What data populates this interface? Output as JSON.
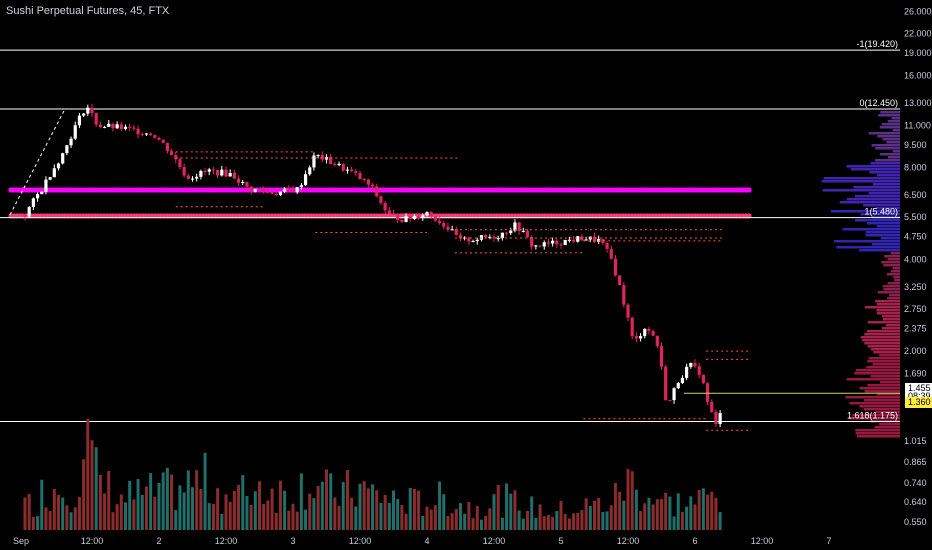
{
  "header": {
    "title": "Sushi Perpetual Futures, 45, FTX"
  },
  "chart_data": {
    "type": "candlestick",
    "title": "Sushi Perpetual Futures, 45, FTX",
    "y_scale": "log",
    "ylim": [
      0.53,
      27.5
    ],
    "y_ticks": [
      "26.000",
      "22.000",
      "19.000",
      "16.000",
      "13.000",
      "11.000",
      "9.500",
      "8.000",
      "6.500",
      "5.500",
      "4.750",
      "4.000",
      "3.250",
      "2.750",
      "2.375",
      "2.000",
      "1.690",
      "1.360",
      "1.015",
      "0.865",
      "0.740",
      "0.640",
      "0.550"
    ],
    "y_tick_values": [
      26.0,
      22.0,
      19.0,
      16.0,
      13.0,
      11.0,
      9.5,
      8.0,
      6.5,
      5.5,
      4.75,
      4.0,
      3.25,
      2.75,
      2.375,
      2.0,
      1.69,
      1.36,
      1.015,
      0.865,
      0.74,
      0.64,
      0.55
    ],
    "x_ticks": [
      "Sep",
      "12:00",
      "2",
      "12:00",
      "3",
      "12:00",
      "4",
      "12:00",
      "5",
      "12:00",
      "6",
      "12:00",
      "7"
    ],
    "x_tick_hours": [
      0,
      12,
      24,
      36,
      48,
      60,
      72,
      84,
      96,
      108,
      120,
      132,
      144
    ],
    "fib_levels": [
      {
        "label": "-1(19.420)",
        "price": 19.42
      },
      {
        "label": "0(12.450)",
        "price": 12.45
      },
      {
        "label": "1(5.480)",
        "price": 5.48
      },
      {
        "label": "1.618(1.175)",
        "price": 1.175
      }
    ],
    "price_labels": [
      {
        "text": "1.455",
        "value": 1.455,
        "bg": "#ffffff",
        "fg": "#000000"
      },
      {
        "text": "08:39",
        "value": 1.4,
        "bg": "#ffffff",
        "fg": "#000000"
      },
      {
        "text": "1.360",
        "value": 1.36,
        "bg": "#ffeb3b",
        "fg": "#000000"
      }
    ],
    "key_levels": [
      {
        "price": 6.75,
        "color": "#ff00ff",
        "x_hours": [
          0,
          130
        ]
      },
      {
        "price": 5.55,
        "color": "#ff3a70",
        "x_hours": [
          0,
          130
        ]
      }
    ],
    "candles_anchor_close": [
      [
        0,
        5.6
      ],
      [
        3,
        6.8
      ],
      [
        7,
        9.0
      ],
      [
        11,
        12.8
      ],
      [
        13,
        11.0
      ],
      [
        17,
        10.8
      ],
      [
        23,
        10.3
      ],
      [
        26,
        9.0
      ],
      [
        29,
        7.4
      ],
      [
        33,
        7.8
      ],
      [
        37,
        7.6
      ],
      [
        40,
        6.8
      ],
      [
        45,
        6.6
      ],
      [
        49,
        6.8
      ],
      [
        52,
        8.8
      ],
      [
        55,
        8.3
      ],
      [
        59,
        7.6
      ],
      [
        62,
        6.9
      ],
      [
        65,
        5.6
      ],
      [
        68,
        5.4
      ],
      [
        72,
        5.7
      ],
      [
        75,
        5.2
      ],
      [
        78,
        4.6
      ],
      [
        82,
        4.7
      ],
      [
        85,
        4.8
      ],
      [
        88,
        5.2
      ],
      [
        91,
        4.4
      ],
      [
        94,
        4.5
      ],
      [
        97,
        4.6
      ],
      [
        100,
        4.7
      ],
      [
        103,
        4.6
      ],
      [
        105,
        4.0
      ],
      [
        107,
        3.0
      ],
      [
        109,
        2.1
      ],
      [
        111,
        2.4
      ],
      [
        113,
        2.2
      ],
      [
        115,
        1.3
      ],
      [
        117,
        1.6
      ],
      [
        119,
        1.8
      ],
      [
        121,
        1.7
      ],
      [
        122,
        1.4
      ],
      [
        124,
        1.1
      ],
      [
        125,
        1.455
      ]
    ],
    "volume_anchor": [
      [
        0,
        0.25
      ],
      [
        4,
        0.45
      ],
      [
        9,
        0.5
      ],
      [
        11,
        1.0
      ],
      [
        13,
        0.55
      ],
      [
        17,
        0.35
      ],
      [
        22,
        0.4
      ],
      [
        27,
        0.45
      ],
      [
        32,
        0.55
      ],
      [
        37,
        0.35
      ],
      [
        42,
        0.5
      ],
      [
        47,
        0.4
      ],
      [
        51,
        0.55
      ],
      [
        55,
        0.4
      ],
      [
        60,
        0.45
      ],
      [
        65,
        0.35
      ],
      [
        70,
        0.3
      ],
      [
        75,
        0.35
      ],
      [
        80,
        0.25
      ],
      [
        85,
        0.35
      ],
      [
        90,
        0.25
      ],
      [
        95,
        0.2
      ],
      [
        100,
        0.25
      ],
      [
        105,
        0.3
      ],
      [
        108,
        0.55
      ],
      [
        111,
        0.4
      ],
      [
        115,
        0.3
      ],
      [
        119,
        0.3
      ],
      [
        122,
        0.35
      ],
      [
        125,
        0.4
      ]
    ]
  }
}
